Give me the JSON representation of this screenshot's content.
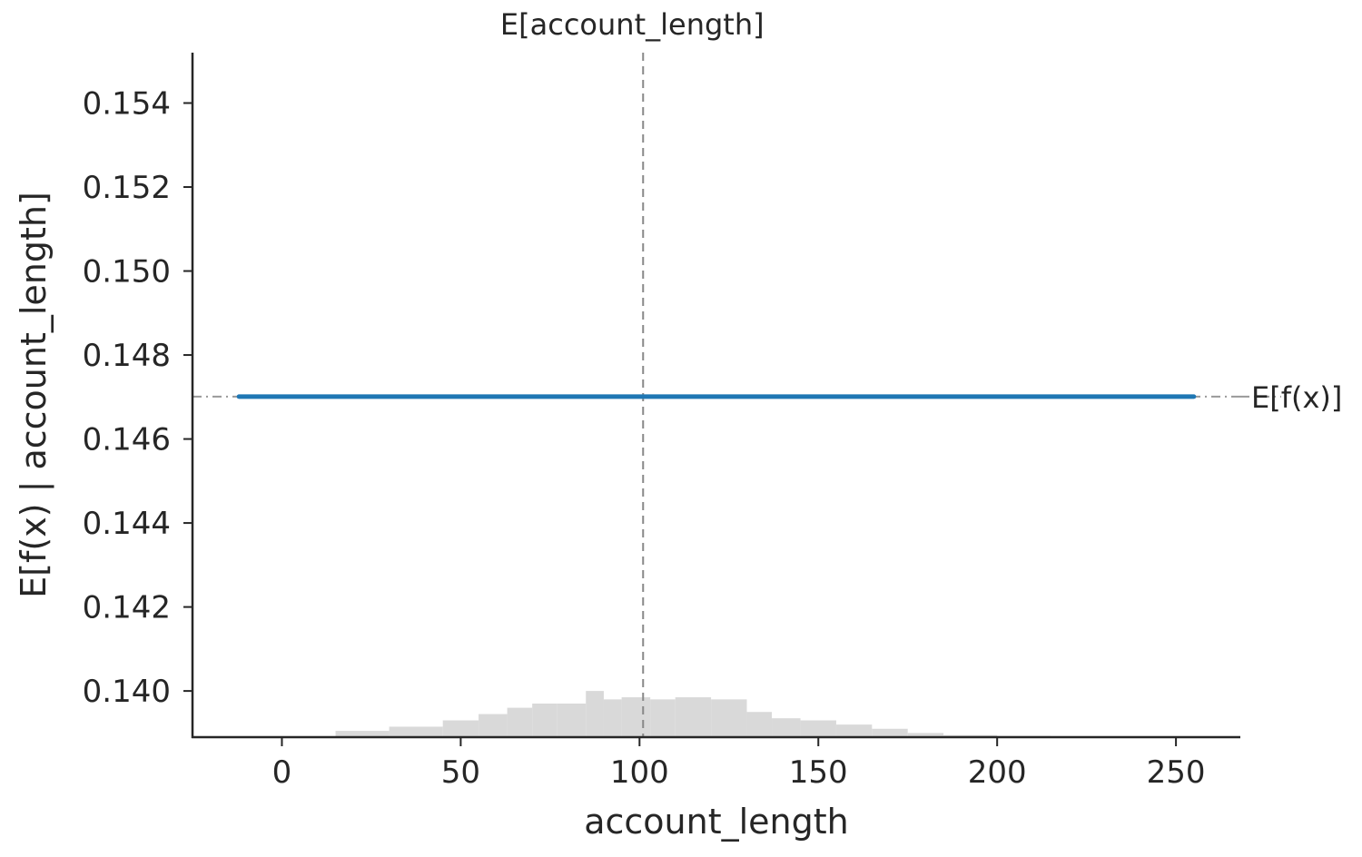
{
  "chart_data": {
    "type": "line",
    "title": "",
    "xlabel": "account_length",
    "ylabel": "E[f(x) | account_length]",
    "xlim": [
      -25,
      268
    ],
    "ylim": [
      0.1389,
      0.1552
    ],
    "x_ticks": [
      0,
      50,
      100,
      150,
      200,
      250
    ],
    "y_ticks": [
      0.14,
      0.142,
      0.144,
      0.146,
      0.148,
      0.15,
      0.152,
      0.154
    ],
    "series": [
      {
        "x": [
          -12,
          255
        ],
        "y": [
          0.14701,
          0.14701
        ],
        "color": "#1f77b4"
      }
    ],
    "reference_lines": {
      "vertical": {
        "x": 101,
        "label": "E[account_length]"
      },
      "horizontal": {
        "y": 0.14701,
        "label": "E[f(x)]"
      }
    },
    "histogram": {
      "color": "#d9d9d9",
      "bin_edges": [
        0,
        15,
        30,
        45,
        55,
        63,
        70,
        77,
        85,
        90,
        95,
        103,
        110,
        120,
        130,
        137,
        145,
        155,
        165,
        175,
        185,
        200,
        215,
        250
      ],
      "heights": [
        0.0,
        0.00015,
        0.00025,
        0.0004,
        0.00055,
        0.0007,
        0.0008,
        0.0008,
        0.0011,
        0.0009,
        0.00095,
        0.0009,
        0.00095,
        0.0009,
        0.0006,
        0.00045,
        0.0004,
        0.0003,
        0.0002,
        0.0001,
        5e-05,
        3e-05,
        0.0
      ]
    },
    "grid": false,
    "legend": "none"
  }
}
